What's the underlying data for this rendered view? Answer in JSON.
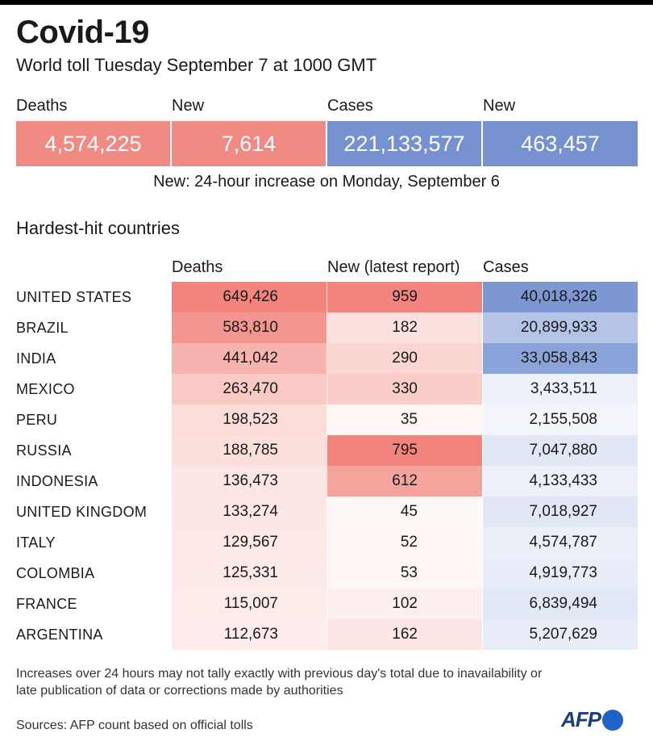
{
  "header": {
    "title": "Covid-19",
    "subtitle": "World toll Tuesday September 7 at 1000 GMT"
  },
  "kpis": [
    {
      "label": "Deaths",
      "value": "4,574,225",
      "color": "#f08b84"
    },
    {
      "label": "New",
      "value": "7,614",
      "color": "#f08b84"
    },
    {
      "label": "Cases",
      "value": "221,133,577",
      "color": "#7591cf"
    },
    {
      "label": "New",
      "value": "463,457",
      "color": "#7591cf"
    }
  ],
  "note": "New: 24-hour increase on Monday, September 6",
  "table": {
    "section_title": "Hardest-hit countries",
    "columns": [
      "Deaths",
      "New (latest report)",
      "Cases"
    ],
    "rows": [
      {
        "country": "UNITED STATES",
        "deaths": "649,426",
        "new": "959",
        "cases": "40,018,326"
      },
      {
        "country": "BRAZIL",
        "deaths": "583,810",
        "new": "182",
        "cases": "20,899,933"
      },
      {
        "country": "INDIA",
        "deaths": "441,042",
        "new": "290",
        "cases": "33,058,843"
      },
      {
        "country": "MEXICO",
        "deaths": "263,470",
        "new": "330",
        "cases": "3,433,511"
      },
      {
        "country": "PERU",
        "deaths": "198,523",
        "new": "35",
        "cases": "2,155,508"
      },
      {
        "country": "RUSSIA",
        "deaths": "188,785",
        "new": "795",
        "cases": "7,047,880"
      },
      {
        "country": "INDONESIA",
        "deaths": "136,473",
        "new": "612",
        "cases": "4,133,433"
      },
      {
        "country": "UNITED KINGDOM",
        "deaths": "133,274",
        "new": "45",
        "cases": "7,018,927"
      },
      {
        "country": "ITALY",
        "deaths": "129,567",
        "new": "52",
        "cases": "4,574,787"
      },
      {
        "country": "COLOMBIA",
        "deaths": "125,331",
        "new": "53",
        "cases": "4,919,773"
      },
      {
        "country": "FRANCE",
        "deaths": "115,007",
        "new": "102",
        "cases": "6,839,494"
      },
      {
        "country": "ARGENTINA",
        "deaths": "112,673",
        "new": "162",
        "cases": "5,207,629"
      }
    ]
  },
  "colors": {
    "deaths_scale": "#f08b84",
    "cases_scale": "#7591cf"
  },
  "footnote": "Increases over 24 hours may not tally exactly with previous day's total due to inavailability or late publication of data or corrections made by authorities",
  "sources": "Sources: AFP count based on official tolls",
  "logo": {
    "text": "AFP"
  }
}
